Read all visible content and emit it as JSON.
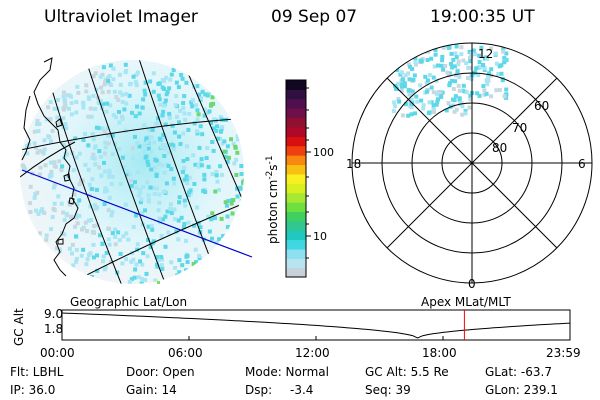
{
  "header": {
    "instrument": "Ultraviolet Imager",
    "date": "09 Sep 07",
    "time": "19:00:35 UT"
  },
  "geographic_panel": {
    "caption": "Geographic Lat/Lon"
  },
  "colorbar": {
    "axis_label": "photon cm",
    "exp_a": "-2",
    "unit_s": "s",
    "exp_b": "-1",
    "ticks": [
      "100",
      "10"
    ],
    "colors": [
      "#c8d0d8",
      "#b8e4f0",
      "#8ce0f0",
      "#40d8e0",
      "#20c8c0",
      "#30c890",
      "#40d060",
      "#70e040",
      "#a8e830",
      "#d8f020",
      "#f8f020",
      "#f8c010",
      "#f88810",
      "#f04010",
      "#d81010",
      "#b00828",
      "#901030",
      "#701048",
      "#501050",
      "#301040",
      "#100820"
    ]
  },
  "polar_panel": {
    "caption": "Apex  MLat/MLT",
    "mlt_labels": {
      "noon": "12",
      "dawn": "6",
      "midnight": "0",
      "dusk": "18"
    },
    "lat_labels": [
      "60",
      "70",
      "80"
    ]
  },
  "altitude_plot": {
    "ylabel": "GC Alt",
    "ytick_top": "9.0",
    "ytick_bottom": "1.8",
    "yrange": [
      1.8,
      9.0
    ],
    "xrange_hours": [
      0,
      24
    ],
    "current_hour": 19.01,
    "xticks": [
      "00:00",
      "06:00",
      "12:00",
      "18:00",
      "23:59"
    ]
  },
  "status": {
    "flt": "Flt: LBHL",
    "ip": "IP: 36.0",
    "door": "Door: Open",
    "gain": "Gain: 14",
    "mode": "Mode: Normal",
    "dsp_label": "Dsp:",
    "dsp_value": "-3.4",
    "gc_alt": "GC Alt: 5.5 Re",
    "seq": "Seq: 39",
    "glat": "GLat: -63.7",
    "glon": "GLon: 239.1"
  },
  "colors": {
    "aurora_faint": "#c8d8e0",
    "aurora_light": "#a8e6f4",
    "aurora_mid": "#5cd8e8",
    "aurora_bright": "#6ed870",
    "track": "#0000cc",
    "marker": "#ff0000"
  }
}
